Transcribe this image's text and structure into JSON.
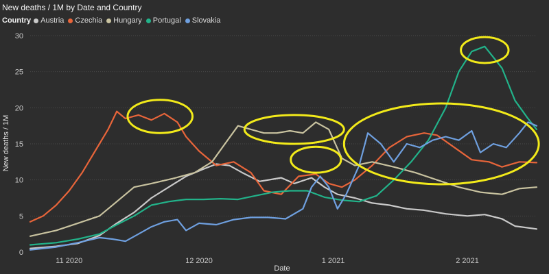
{
  "colors": {
    "background": "#2d2d2d",
    "highlight_ellipse": "#f2ea1a",
    "gridline": "#4a4a4a"
  },
  "chart_data": {
    "type": "line",
    "title": "New deaths / 1M by Date and Country",
    "legend_title": "Country",
    "legend_position": "top-left",
    "xlabel": "Date",
    "ylabel": "New deaths / 1M",
    "x_range": [
      "2020-10-23",
      "2021-02-17"
    ],
    "ylim": [
      0,
      30
    ],
    "y_ticks": [
      0,
      5,
      10,
      15,
      20,
      25,
      30
    ],
    "x_ticks": [
      {
        "date": "2020-11-01",
        "label": "11 2020"
      },
      {
        "date": "2020-12-01",
        "label": "12 2020"
      },
      {
        "date": "2021-01-01",
        "label": "1 2021"
      },
      {
        "date": "2021-02-01",
        "label": "2 2021"
      }
    ],
    "grid": true,
    "series": [
      {
        "name": "Austria",
        "color": "#c9c9c9",
        "points": [
          [
            "2020-10-23",
            0.5
          ],
          [
            "2020-10-29",
            0.8
          ],
          [
            "2020-11-03",
            1.2
          ],
          [
            "2020-11-08",
            2.3
          ],
          [
            "2020-11-12",
            4.0
          ],
          [
            "2020-11-16",
            5.5
          ],
          [
            "2020-11-20",
            7.5
          ],
          [
            "2020-11-24",
            9.0
          ],
          [
            "2020-11-28",
            10.5
          ],
          [
            "2020-12-02",
            11.5
          ],
          [
            "2020-12-05",
            12.2
          ],
          [
            "2020-12-08",
            12.0
          ],
          [
            "2020-12-11",
            11.0
          ],
          [
            "2020-12-15",
            9.8
          ],
          [
            "2020-12-20",
            10.3
          ],
          [
            "2020-12-23",
            9.5
          ],
          [
            "2020-12-27",
            10.3
          ],
          [
            "2020-12-30",
            9.0
          ],
          [
            "2021-01-02",
            8.0
          ],
          [
            "2021-01-06",
            7.5
          ],
          [
            "2021-01-10",
            6.8
          ],
          [
            "2021-01-14",
            6.5
          ],
          [
            "2021-01-18",
            6.0
          ],
          [
            "2021-01-22",
            5.8
          ],
          [
            "2021-01-27",
            5.3
          ],
          [
            "2021-02-01",
            5.0
          ],
          [
            "2021-02-05",
            5.2
          ],
          [
            "2021-02-09",
            4.6
          ],
          [
            "2021-02-12",
            3.6
          ],
          [
            "2021-02-17",
            3.2
          ]
        ]
      },
      {
        "name": "Czechia",
        "color": "#e8653a",
        "points": [
          [
            "2020-10-23",
            4.2
          ],
          [
            "2020-10-26",
            5.0
          ],
          [
            "2020-10-29",
            6.5
          ],
          [
            "2020-11-01",
            8.5
          ],
          [
            "2020-11-04",
            11.0
          ],
          [
            "2020-11-07",
            14.0
          ],
          [
            "2020-11-10",
            17.0
          ],
          [
            "2020-11-12",
            19.5
          ],
          [
            "2020-11-14",
            18.5
          ],
          [
            "2020-11-17",
            19.0
          ],
          [
            "2020-11-20",
            18.3
          ],
          [
            "2020-11-23",
            19.2
          ],
          [
            "2020-11-26",
            18.0
          ],
          [
            "2020-11-28",
            16.0
          ],
          [
            "2020-12-01",
            14.0
          ],
          [
            "2020-12-05",
            12.0
          ],
          [
            "2020-12-09",
            12.5
          ],
          [
            "2020-12-13",
            11.0
          ],
          [
            "2020-12-16",
            8.5
          ],
          [
            "2020-12-20",
            8.0
          ],
          [
            "2020-12-24",
            10.5
          ],
          [
            "2020-12-28",
            10.8
          ],
          [
            "2020-12-31",
            9.5
          ],
          [
            "2021-01-03",
            9.0
          ],
          [
            "2021-01-06",
            10.0
          ],
          [
            "2021-01-10",
            12.0
          ],
          [
            "2021-01-14",
            14.5
          ],
          [
            "2021-01-18",
            16.0
          ],
          [
            "2021-01-22",
            16.5
          ],
          [
            "2021-01-25",
            16.2
          ],
          [
            "2021-01-29",
            14.5
          ],
          [
            "2021-02-02",
            12.8
          ],
          [
            "2021-02-06",
            12.5
          ],
          [
            "2021-02-09",
            11.8
          ],
          [
            "2021-02-13",
            12.5
          ],
          [
            "2021-02-17",
            12.4
          ]
        ]
      },
      {
        "name": "Hungary",
        "color": "#c9c3a0",
        "points": [
          [
            "2020-10-23",
            2.2
          ],
          [
            "2020-10-29",
            3.0
          ],
          [
            "2020-11-03",
            4.0
          ],
          [
            "2020-11-08",
            5.0
          ],
          [
            "2020-11-12",
            7.0
          ],
          [
            "2020-11-16",
            9.0
          ],
          [
            "2020-11-20",
            9.5
          ],
          [
            "2020-11-25",
            10.2
          ],
          [
            "2020-11-30",
            11.0
          ],
          [
            "2020-12-04",
            12.5
          ],
          [
            "2020-12-07",
            15.0
          ],
          [
            "2020-12-10",
            17.5
          ],
          [
            "2020-12-13",
            17.0
          ],
          [
            "2020-12-16",
            16.5
          ],
          [
            "2020-12-19",
            16.5
          ],
          [
            "2020-12-22",
            16.8
          ],
          [
            "2020-12-25",
            16.5
          ],
          [
            "2020-12-28",
            18.0
          ],
          [
            "2020-12-31",
            17.0
          ],
          [
            "2021-01-03",
            13.0
          ],
          [
            "2021-01-06",
            12.0
          ],
          [
            "2021-01-10",
            12.5
          ],
          [
            "2021-01-15",
            11.8
          ],
          [
            "2021-01-20",
            11.0
          ],
          [
            "2021-01-25",
            10.0
          ],
          [
            "2021-01-30",
            9.0
          ],
          [
            "2021-02-04",
            8.3
          ],
          [
            "2021-02-09",
            8.0
          ],
          [
            "2021-02-13",
            8.8
          ],
          [
            "2021-02-17",
            9.0
          ]
        ]
      },
      {
        "name": "Portugal",
        "color": "#22b38a",
        "points": [
          [
            "2020-10-23",
            1.0
          ],
          [
            "2020-10-29",
            1.3
          ],
          [
            "2020-11-03",
            1.8
          ],
          [
            "2020-11-08",
            2.5
          ],
          [
            "2020-11-12",
            3.8
          ],
          [
            "2020-11-16",
            5.0
          ],
          [
            "2020-11-20",
            6.5
          ],
          [
            "2020-11-24",
            7.0
          ],
          [
            "2020-11-28",
            7.3
          ],
          [
            "2020-12-02",
            7.3
          ],
          [
            "2020-12-06",
            7.4
          ],
          [
            "2020-12-10",
            7.3
          ],
          [
            "2020-12-14",
            7.8
          ],
          [
            "2020-12-18",
            8.3
          ],
          [
            "2020-12-22",
            8.5
          ],
          [
            "2020-12-26",
            8.5
          ],
          [
            "2020-12-30",
            7.6
          ],
          [
            "2021-01-03",
            7.2
          ],
          [
            "2021-01-07",
            7.0
          ],
          [
            "2021-01-11",
            7.8
          ],
          [
            "2021-01-15",
            10.0
          ],
          [
            "2021-01-19",
            12.5
          ],
          [
            "2021-01-23",
            15.5
          ],
          [
            "2021-01-27",
            20.0
          ],
          [
            "2021-01-30",
            25.0
          ],
          [
            "2021-02-02",
            27.8
          ],
          [
            "2021-02-05",
            28.5
          ],
          [
            "2021-02-07",
            27.0
          ],
          [
            "2021-02-09",
            25.5
          ],
          [
            "2021-02-12",
            21.0
          ],
          [
            "2021-02-15",
            18.5
          ],
          [
            "2021-02-17",
            17.0
          ]
        ]
      },
      {
        "name": "Slovakia",
        "color": "#6fa0e0",
        "points": [
          [
            "2020-10-23",
            0.3
          ],
          [
            "2020-10-29",
            0.7
          ],
          [
            "2020-11-03",
            1.3
          ],
          [
            "2020-11-08",
            2.0
          ],
          [
            "2020-11-11",
            1.8
          ],
          [
            "2020-11-14",
            1.5
          ],
          [
            "2020-11-17",
            2.5
          ],
          [
            "2020-11-20",
            3.5
          ],
          [
            "2020-11-23",
            4.2
          ],
          [
            "2020-11-26",
            4.5
          ],
          [
            "2020-11-28",
            3.0
          ],
          [
            "2020-12-01",
            4.0
          ],
          [
            "2020-12-05",
            3.8
          ],
          [
            "2020-12-09",
            4.5
          ],
          [
            "2020-12-13",
            4.8
          ],
          [
            "2020-12-17",
            4.8
          ],
          [
            "2020-12-21",
            4.6
          ],
          [
            "2020-12-25",
            6.0
          ],
          [
            "2020-12-27",
            9.0
          ],
          [
            "2020-12-29",
            10.5
          ],
          [
            "2020-12-31",
            9.0
          ],
          [
            "2021-01-02",
            6.0
          ],
          [
            "2021-01-04",
            8.0
          ],
          [
            "2021-01-07",
            12.0
          ],
          [
            "2021-01-09",
            16.5
          ],
          [
            "2021-01-12",
            15.0
          ],
          [
            "2021-01-15",
            12.5
          ],
          [
            "2021-01-18",
            15.0
          ],
          [
            "2021-01-21",
            14.5
          ],
          [
            "2021-01-24",
            15.5
          ],
          [
            "2021-01-27",
            16.0
          ],
          [
            "2021-01-30",
            15.5
          ],
          [
            "2021-02-02",
            16.8
          ],
          [
            "2021-02-04",
            13.8
          ],
          [
            "2021-02-07",
            15.0
          ],
          [
            "2021-02-10",
            14.5
          ],
          [
            "2021-02-13",
            16.5
          ],
          [
            "2021-02-15",
            18.0
          ],
          [
            "2021-02-17",
            17.5
          ]
        ]
      }
    ],
    "annotations": [
      {
        "type": "ellipse",
        "cx": "2020-11-22",
        "cy": 18.8,
        "rx_days": 7.5,
        "ry": 2.3
      },
      {
        "type": "ellipse",
        "cx": "2020-12-23",
        "cy": 17.0,
        "rx_days": 11.5,
        "ry": 2.0
      },
      {
        "type": "ellipse",
        "cx": "2020-12-28",
        "cy": 12.8,
        "rx_days": 5.8,
        "ry": 1.8
      },
      {
        "type": "ellipse",
        "cx": "2021-01-26",
        "cy": 15.0,
        "rx_days": 22.5,
        "ry": 5.6
      },
      {
        "type": "ellipse",
        "cx": "2021-02-05",
        "cy": 28.0,
        "rx_days": 5.5,
        "ry": 1.8
      }
    ]
  }
}
